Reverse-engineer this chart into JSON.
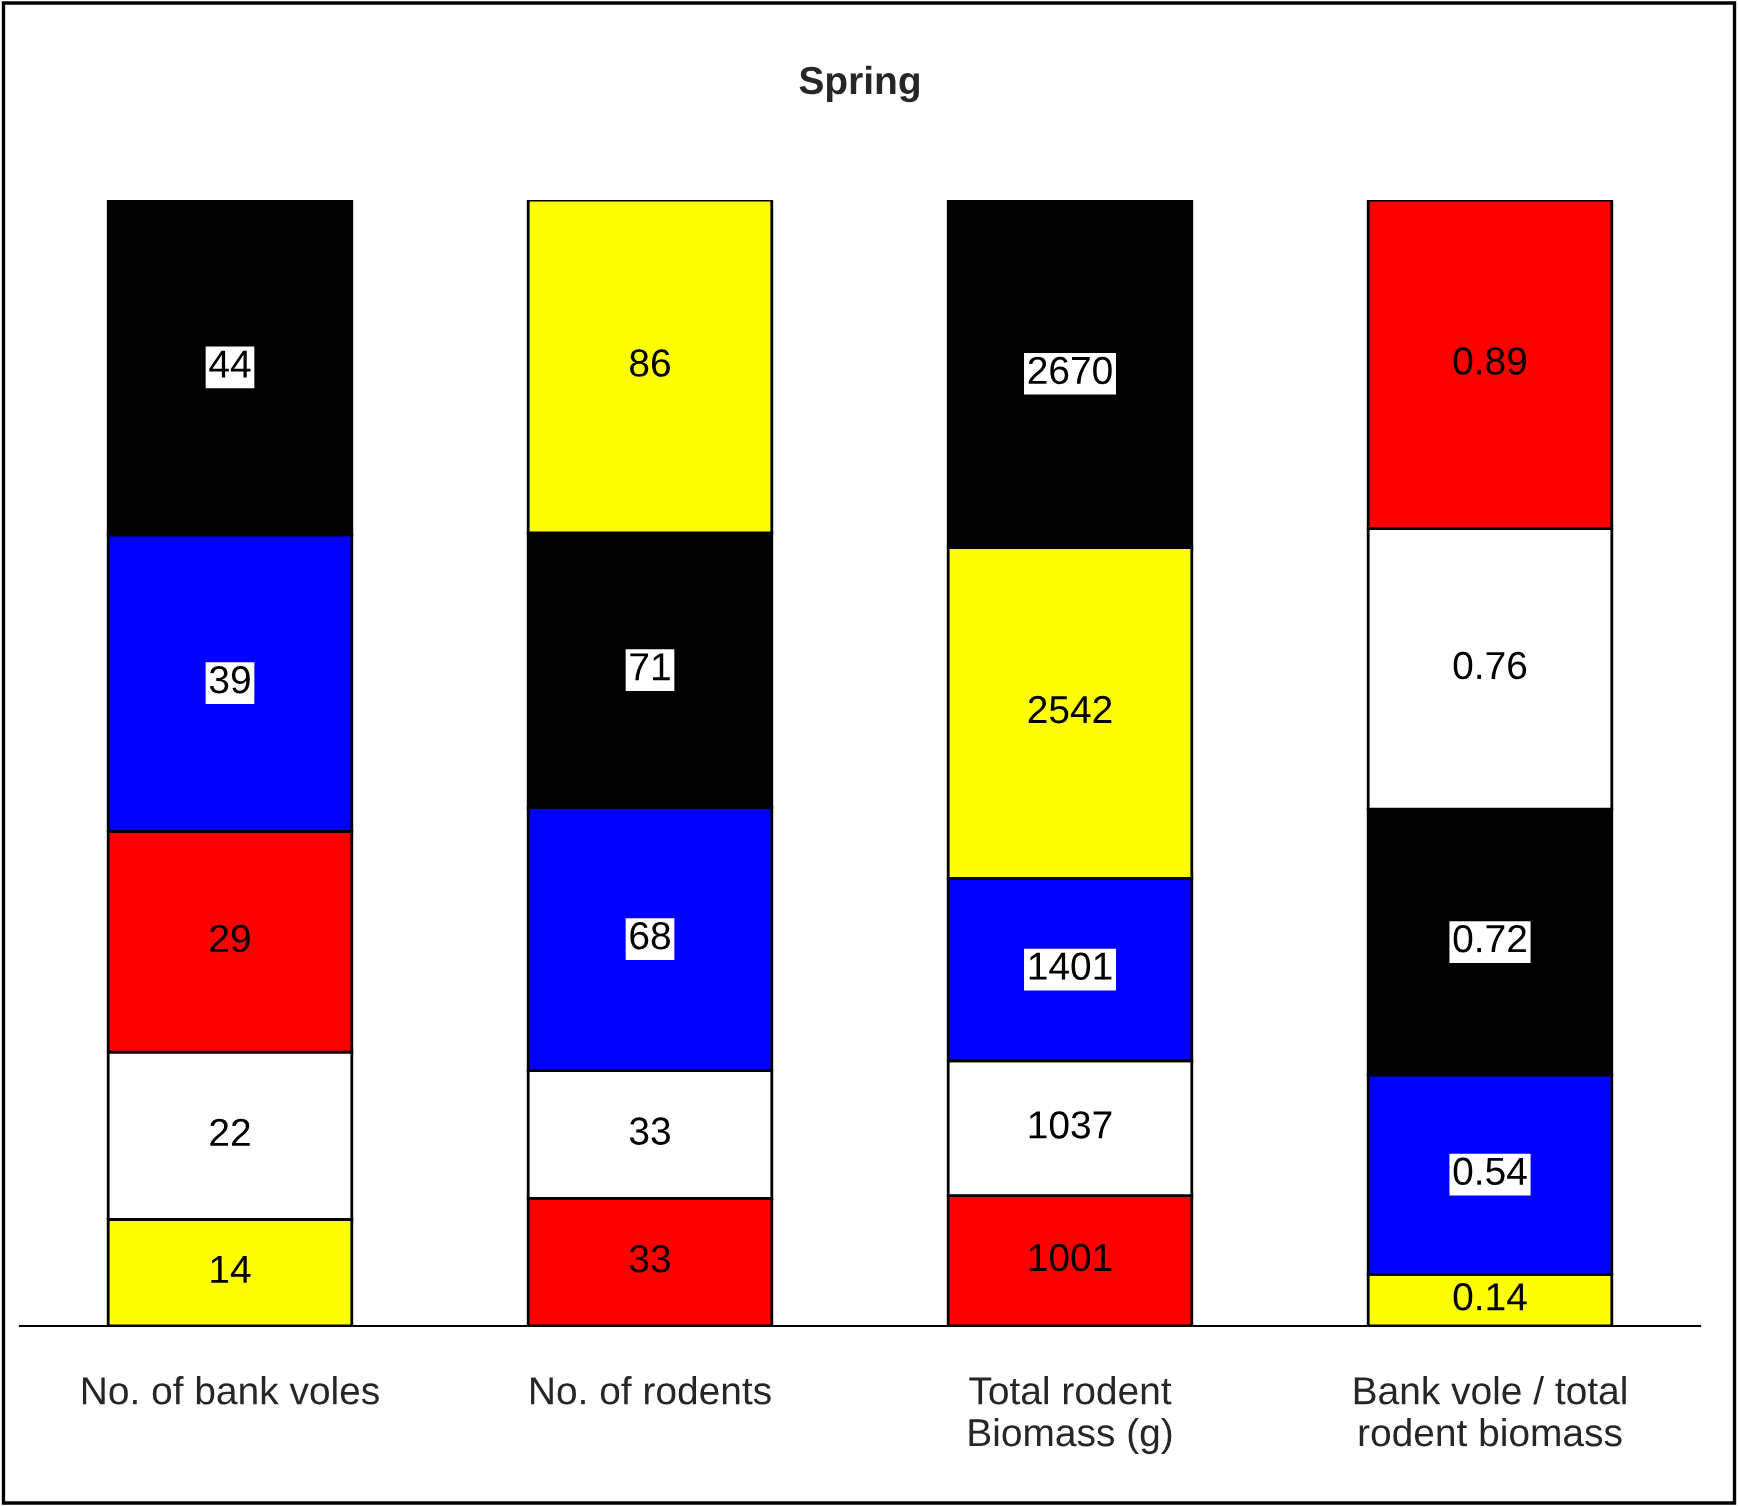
{
  "chart_data": [
    {
      "type": "other",
      "title": "Spring"
    },
    {
      "type": "bar",
      "stacked": true,
      "data_labels": true,
      "tick_labels": "x",
      "ylim": [
        0,
        148
      ],
      "categories": [
        "No. of bank voles"
      ],
      "series": [
        {
          "color": "#ffff00",
          "values": [
            14
          ]
        },
        {
          "color": "#ffffff",
          "values": [
            22
          ]
        },
        {
          "color": "#ff0000",
          "values": [
            29
          ]
        },
        {
          "color": "#0000ff",
          "values": [
            39
          ]
        },
        {
          "color": "#000000",
          "values": [
            44
          ]
        }
      ]
    },
    {
      "type": "bar",
      "stacked": true,
      "data_labels": true,
      "tick_labels": "x",
      "ylim": [
        0,
        291
      ],
      "categories": [
        "No. of rodents"
      ],
      "series": [
        {
          "color": "#ff0000",
          "values": [
            33
          ]
        },
        {
          "color": "#ffffff",
          "values": [
            33
          ]
        },
        {
          "color": "#0000ff",
          "values": [
            68
          ]
        },
        {
          "color": "#000000",
          "values": [
            71
          ]
        },
        {
          "color": "#ffff00",
          "values": [
            86
          ]
        }
      ]
    },
    {
      "type": "bar",
      "stacked": true,
      "data_labels": true,
      "tick_labels": "x",
      "ylim": [
        0,
        8651
      ],
      "categories": [
        "Total rodent\nBiomass (g)"
      ],
      "series": [
        {
          "color": "#ff0000",
          "values": [
            1001
          ]
        },
        {
          "color": "#ffffff",
          "values": [
            1037
          ]
        },
        {
          "color": "#0000ff",
          "values": [
            1401
          ]
        },
        {
          "color": "#ffff00",
          "values": [
            2542
          ]
        },
        {
          "color": "#000000",
          "values": [
            2670
          ]
        }
      ]
    },
    {
      "type": "bar",
      "stacked": true,
      "data_labels": true,
      "tick_labels": "x",
      "ylim": [
        0,
        3.05
      ],
      "categories": [
        "Bank vole / total\nrodent biomass"
      ],
      "series": [
        {
          "color": "#ffff00",
          "values": [
            0.14
          ]
        },
        {
          "color": "#0000ff",
          "values": [
            0.54
          ]
        },
        {
          "color": "#000000",
          "values": [
            0.72
          ]
        },
        {
          "color": "#ffffff",
          "values": [
            0.76
          ]
        },
        {
          "color": "#ff0000",
          "values": [
            0.89
          ]
        }
      ]
    }
  ]
}
